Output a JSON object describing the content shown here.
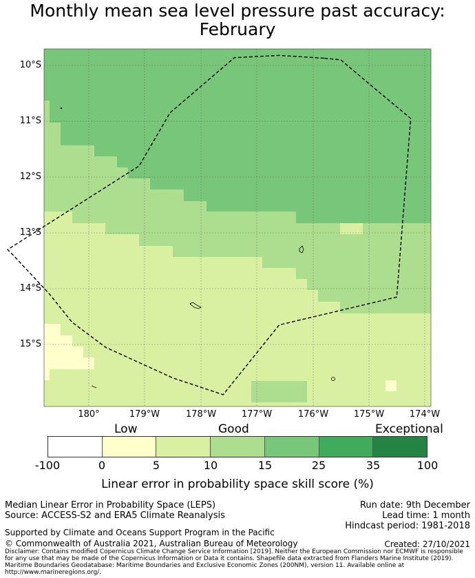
{
  "title": {
    "line1": "Monthly mean sea level pressure past accuracy:",
    "line2": "February"
  },
  "map": {
    "lat_labels": [
      "10°S",
      "11°S",
      "12°S",
      "13°S",
      "14°S",
      "15°S"
    ],
    "lon_labels": [
      "180°",
      "179°W",
      "178°W",
      "177°W",
      "176°W",
      "175°W",
      "174°W"
    ],
    "lon_range": [
      179.2,
      186.1
    ],
    "lat_range": [
      -16.1,
      -9.7
    ],
    "region_colors": {
      "below_0": "#ffffcc",
      "0_to_5": "#ffffcc",
      "5_to_10": "#d9f0a3",
      "10_to_15": "#addd8e",
      "15_to_25": "#78c679",
      "25_to_35": "#41ab5d"
    },
    "eez_boundary_lonlat": [
      [
        184.2,
        -9.87
      ],
      [
        183.4,
        -9.82
      ],
      [
        182.6,
        -9.86
      ],
      [
        181.45,
        -10.85
      ],
      [
        180.9,
        -11.8
      ],
      [
        178.55,
        -13.3
      ],
      [
        178.65,
        -13.4
      ],
      [
        179.3,
        -14.1
      ],
      [
        179.7,
        -14.6
      ],
      [
        180.3,
        -15.05
      ],
      [
        181.5,
        -15.6
      ],
      [
        182.4,
        -15.9
      ],
      [
        183.4,
        -14.65
      ],
      [
        185.5,
        -14.15
      ],
      [
        185.75,
        -10.95
      ],
      [
        185.15,
        -10.45
      ],
      [
        184.5,
        -9.9
      ],
      [
        184.2,
        -9.87
      ]
    ]
  },
  "colorbar": {
    "categories": [
      "Low",
      "Good",
      "Exceptional"
    ],
    "colors": [
      "#ffffff",
      "#ffffcc",
      "#d9f0a3",
      "#addd8e",
      "#78c679",
      "#41ab5d",
      "#238443"
    ],
    "ticks": [
      "-100",
      "0",
      "5",
      "10",
      "15",
      "25",
      "35",
      "100"
    ],
    "label": "Linear error in probability space skill score (%)"
  },
  "info": {
    "method": "Median Linear Error in Probability Space (LEPS)",
    "source": "Source: ACCESS-S2 and ERA5 Climate Reanalysis",
    "run_date": "Run date: 9th December",
    "lead_time": "Lead time: 1 month",
    "hindcast": "Hindcast period: 1981-2018",
    "supported_by": "Supported by Climate and Oceans Support Program in the Pacific",
    "copyright": "© Commonwealth of Australia 2021, Australian Bureau of Meteorology",
    "created": "Created: 27/10/2021",
    "disclaimer": "Disclaimer: Contains modified Copernicus Climate Change Service Information [2019]. Neither the European Commission nor ECMWF is responsible for any use that may be made of the Copernicus Information or Data it contains. Shapefile data extracted from Flanders Marine Institute (2019). Maritime Boundaries Geodatabase: Maritime Boundaries and Exclusive Economic Zones (200NM), version 11. Available online at http://www.marineregions.org/."
  }
}
